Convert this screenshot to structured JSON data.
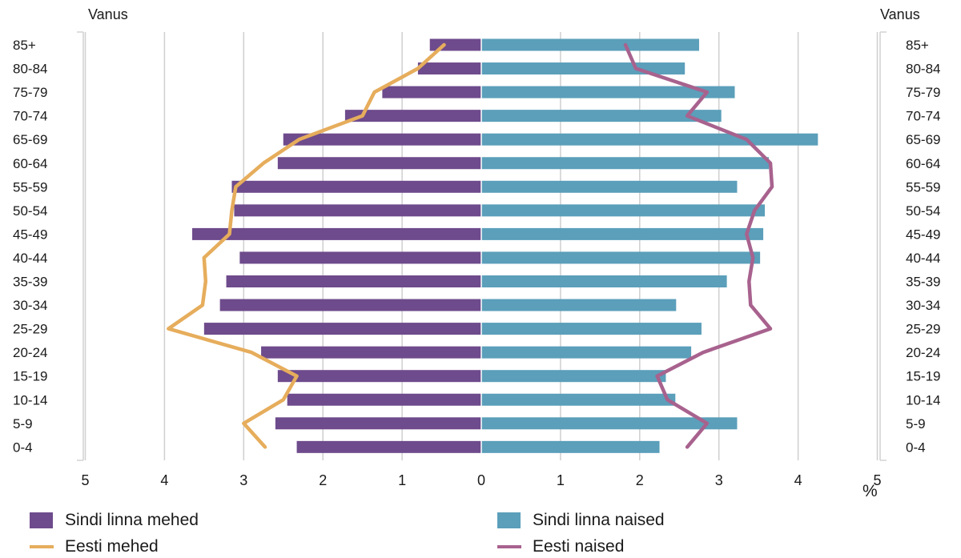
{
  "chart_data": {
    "type": "bar",
    "left_axis_title": "Vanus",
    "right_axis_title": "Vanus",
    "unit_label": "%",
    "x_ticks": [
      "5",
      "4",
      "3",
      "2",
      "1",
      "0",
      "1",
      "2",
      "3",
      "4",
      "5"
    ],
    "xlim": [
      -5,
      5
    ],
    "grid": true,
    "categories": [
      "85+",
      "80-84",
      "75-79",
      "70-74",
      "65-69",
      "60-64",
      "55-59",
      "50-54",
      "45-49",
      "40-44",
      "35-39",
      "30-34",
      "25-29",
      "20-24",
      "15-19",
      "10-14",
      "5-9",
      "0-4"
    ],
    "series": [
      {
        "name": "Sindi linna mehed",
        "kind": "bar",
        "side": "left",
        "color": "#6e4b8c",
        "values": [
          0.65,
          0.8,
          1.25,
          1.72,
          2.5,
          2.57,
          3.15,
          3.12,
          3.65,
          3.05,
          3.22,
          3.3,
          3.5,
          2.78,
          2.57,
          2.45,
          2.6,
          2.33
        ]
      },
      {
        "name": "Sindi linna naised",
        "kind": "bar",
        "side": "right",
        "color": "#5b9fba",
        "values": [
          2.75,
          2.57,
          3.2,
          3.03,
          4.25,
          3.63,
          3.23,
          3.58,
          3.56,
          3.52,
          3.1,
          2.46,
          2.78,
          2.65,
          2.33,
          2.45,
          3.23,
          2.25
        ]
      },
      {
        "name": "Eesti mehed",
        "kind": "line",
        "side": "left",
        "color": "#e6ad5c",
        "values": [
          0.47,
          0.8,
          1.35,
          1.5,
          2.3,
          2.75,
          3.1,
          3.15,
          3.18,
          3.5,
          3.48,
          3.52,
          3.95,
          2.9,
          2.33,
          2.5,
          3.0,
          2.73
        ]
      },
      {
        "name": "Eesti naised",
        "kind": "line",
        "side": "right",
        "color": "#a8628e",
        "values": [
          1.82,
          1.95,
          2.85,
          2.6,
          3.35,
          3.65,
          3.67,
          3.45,
          3.35,
          3.43,
          3.38,
          3.4,
          3.65,
          2.8,
          2.22,
          2.35,
          2.85,
          2.6
        ]
      }
    ],
    "legend_position": "bottom"
  }
}
